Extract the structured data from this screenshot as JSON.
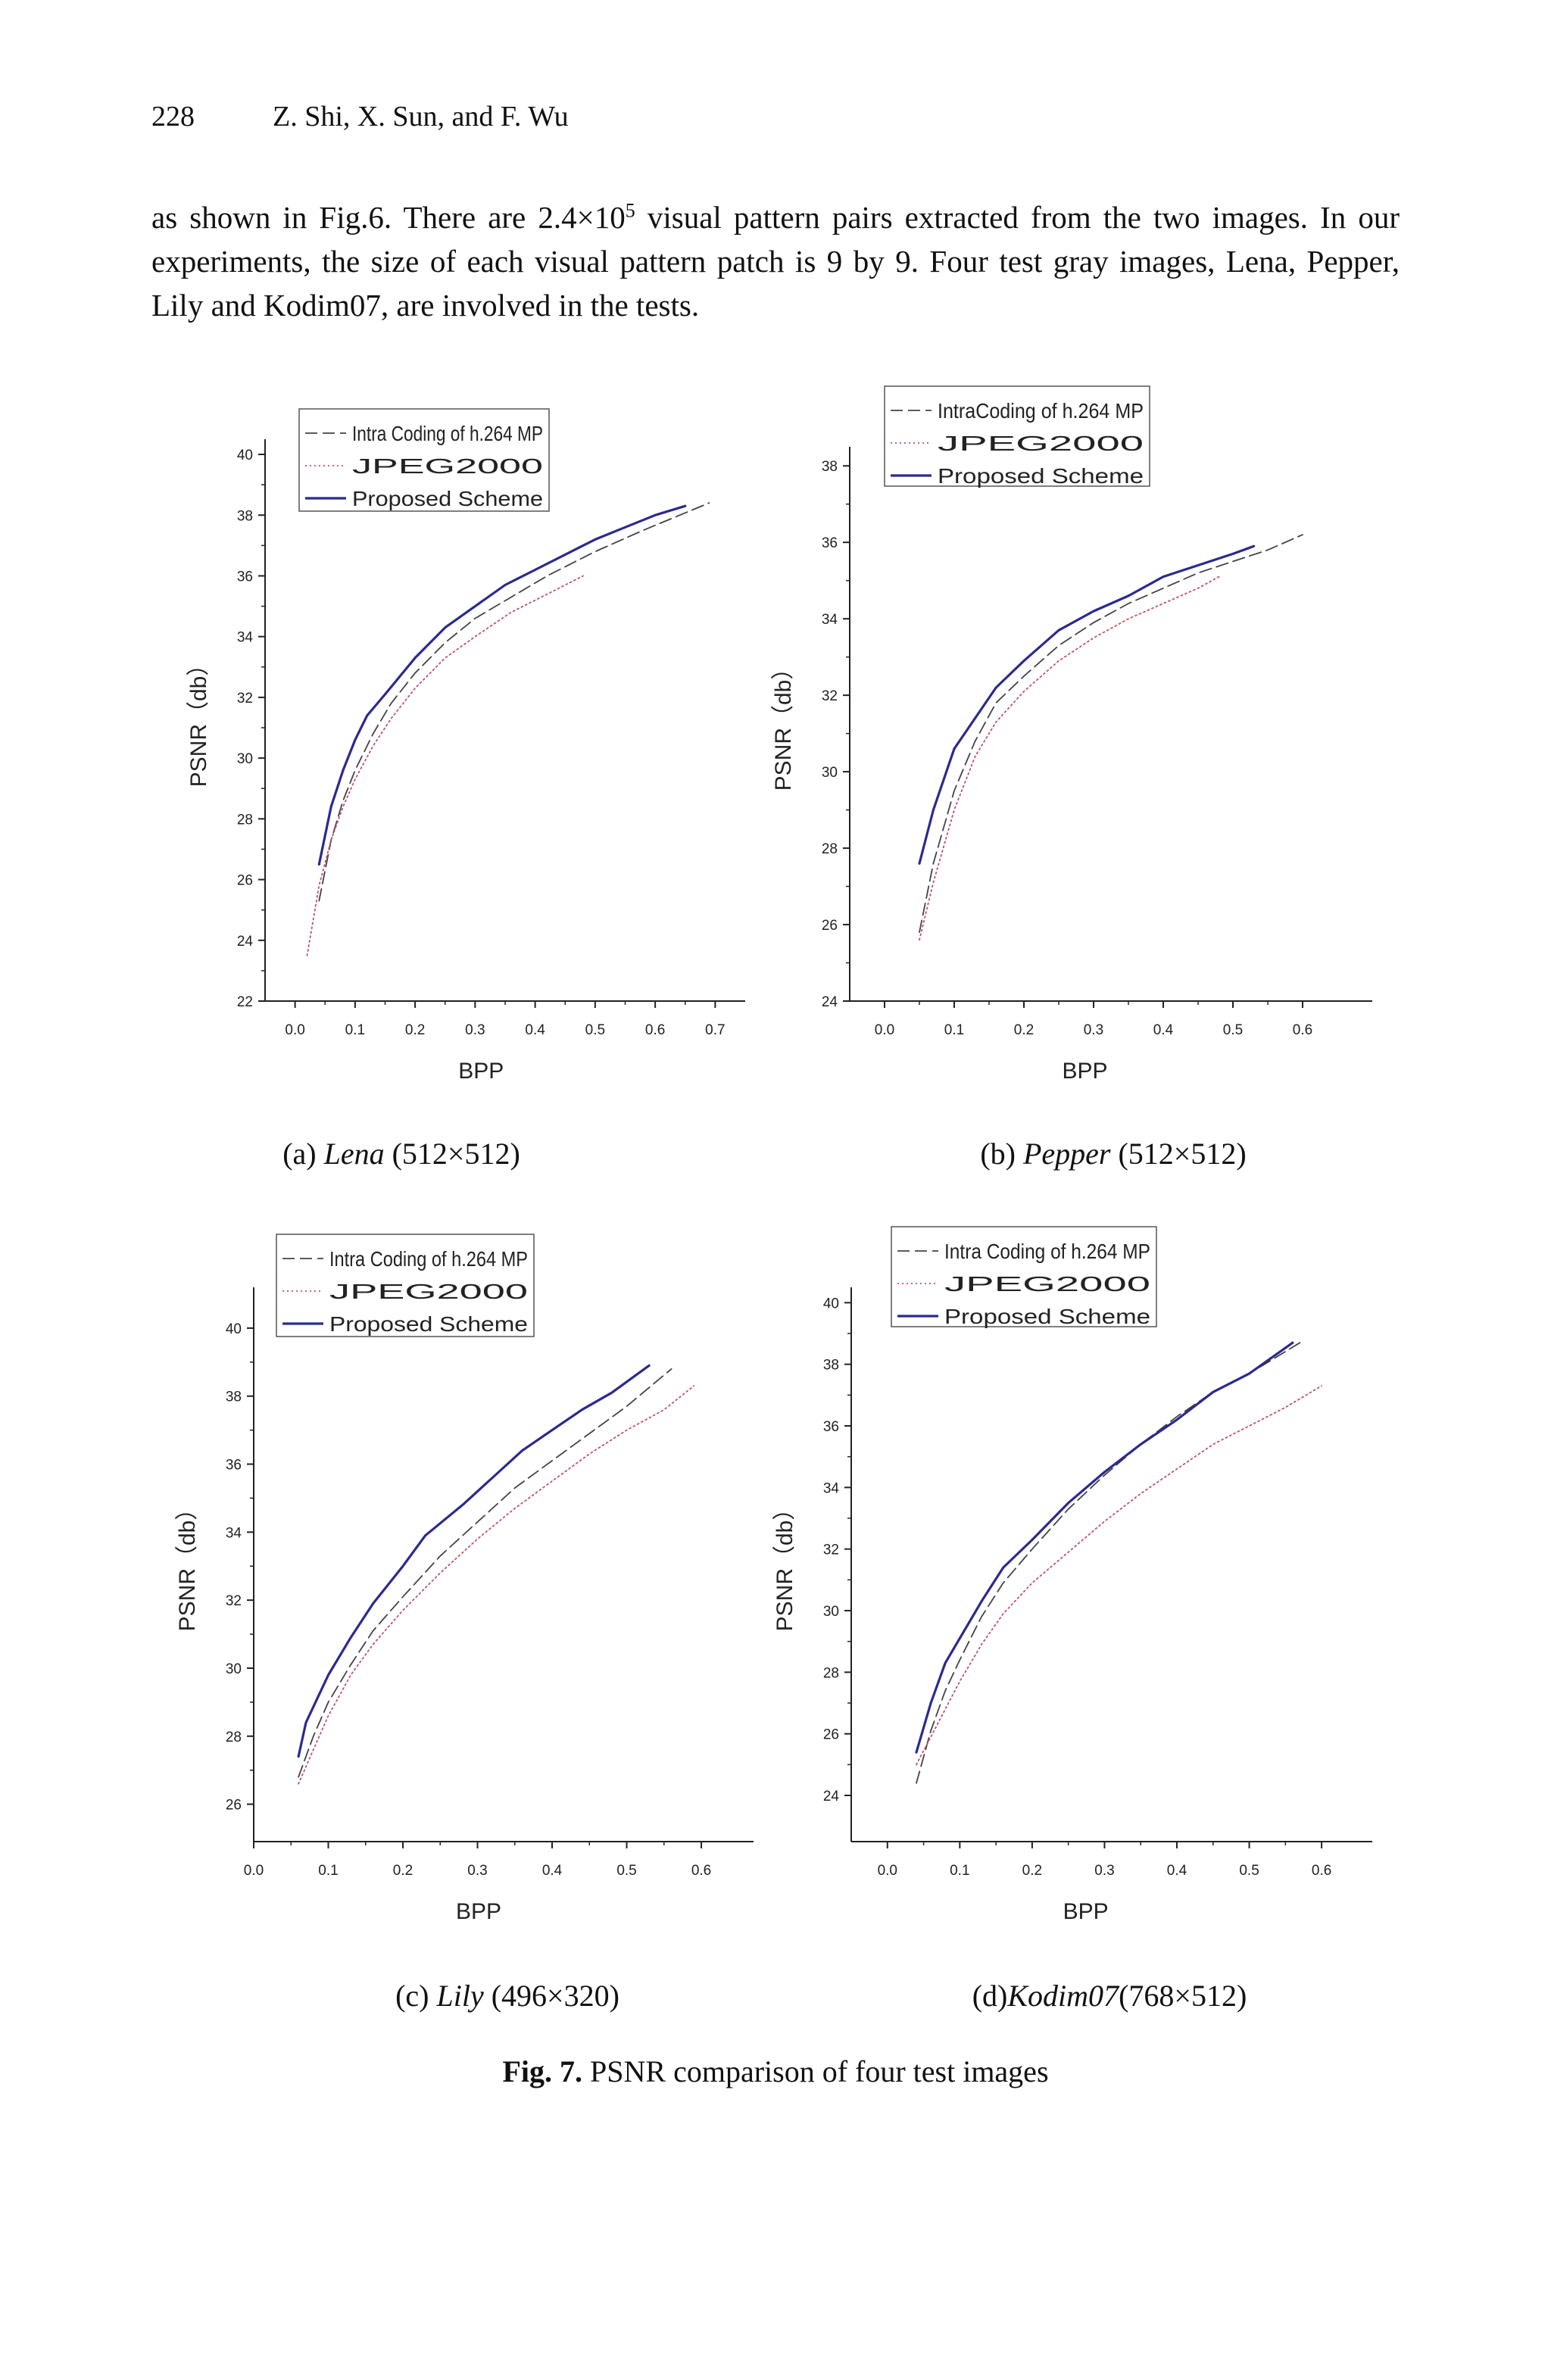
{
  "header": {
    "page_number": "228",
    "authors": "Z. Shi, X. Sun, and F. Wu"
  },
  "body": {
    "part1": "as shown in Fig.6. There are 2.4×10",
    "sup": "5",
    "part2": " visual pattern pairs extracted from the two images. In our experiments, the size of each visual pattern patch is 9 by 9. Four test gray images, Lena, Pepper, Lily and Kodim07, are involved in the tests."
  },
  "figure_caption": {
    "label": "Fig. 7.",
    "text": " PSNR comparison of four test images"
  },
  "series_colors": {
    "intra": "#444444",
    "jpeg": "#c0506a",
    "proposed": "#2b2a8f"
  },
  "chart_data": [
    {
      "type": "line",
      "caption": {
        "letter": "(a)",
        "name": "Lena",
        "size": "(512×512)"
      },
      "xlabel": "BPP",
      "ylabel": "PSNR（db）",
      "xlim": [
        -0.05,
        0.75
      ],
      "ylim": [
        22,
        40.5
      ],
      "xticks": [
        0.0,
        0.1,
        0.2,
        0.3,
        0.4,
        0.5,
        0.6,
        0.7
      ],
      "yticks": [
        22,
        24,
        26,
        28,
        30,
        32,
        34,
        36,
        38,
        40
      ],
      "legend_position": "top-left",
      "series": [
        {
          "name": "Intra Coding of h.264 MP",
          "style": "dashed",
          "x": [
            0.04,
            0.06,
            0.08,
            0.1,
            0.13,
            0.16,
            0.2,
            0.25,
            0.3,
            0.36,
            0.42,
            0.5,
            0.58,
            0.69
          ],
          "y": [
            25.3,
            27.3,
            28.6,
            29.6,
            30.8,
            31.8,
            32.8,
            33.8,
            34.6,
            35.3,
            36.0,
            36.8,
            37.5,
            38.4
          ]
        },
        {
          "name": "JPEG2000",
          "style": "dotted",
          "x": [
            0.02,
            0.04,
            0.06,
            0.08,
            0.1,
            0.13,
            0.16,
            0.2,
            0.25,
            0.3,
            0.36,
            0.42,
            0.48
          ],
          "y": [
            23.5,
            25.8,
            27.3,
            28.4,
            29.3,
            30.4,
            31.3,
            32.3,
            33.3,
            34.0,
            34.8,
            35.4,
            36.0
          ]
        },
        {
          "name": "Proposed Scheme",
          "style": "solid",
          "x": [
            0.04,
            0.06,
            0.08,
            0.1,
            0.12,
            0.15,
            0.2,
            0.25,
            0.3,
            0.35,
            0.4,
            0.45,
            0.5,
            0.55,
            0.6,
            0.65
          ],
          "y": [
            26.5,
            28.4,
            29.6,
            30.6,
            31.4,
            32.1,
            33.3,
            34.3,
            35.0,
            35.7,
            36.2,
            36.7,
            37.2,
            37.6,
            38.0,
            38.3
          ]
        }
      ]
    },
    {
      "type": "line",
      "caption": {
        "letter": "(b)",
        "name": "Pepper",
        "size": "(512×512)"
      },
      "xlabel": "BPP",
      "ylabel": "PSNR（db）",
      "xlim": [
        -0.05,
        0.7
      ],
      "ylim": [
        24,
        38.5
      ],
      "xticks": [
        0.0,
        0.1,
        0.2,
        0.3,
        0.4,
        0.5,
        0.6
      ],
      "yticks": [
        24,
        26,
        28,
        30,
        32,
        34,
        36,
        38
      ],
      "legend_position": "top-left",
      "series": [
        {
          "name": "IntraCoding of h.264 MP",
          "style": "dashed",
          "x": [
            0.05,
            0.07,
            0.1,
            0.13,
            0.16,
            0.2,
            0.25,
            0.3,
            0.35,
            0.4,
            0.45,
            0.5,
            0.55,
            0.6
          ],
          "y": [
            25.8,
            27.6,
            29.5,
            30.8,
            31.8,
            32.5,
            33.3,
            33.9,
            34.4,
            34.8,
            35.2,
            35.5,
            35.8,
            36.2
          ]
        },
        {
          "name": "JPEG2000",
          "style": "dotted",
          "x": [
            0.05,
            0.07,
            0.1,
            0.13,
            0.16,
            0.2,
            0.25,
            0.3,
            0.35,
            0.4,
            0.45,
            0.48
          ],
          "y": [
            25.6,
            27.1,
            29.0,
            30.4,
            31.3,
            32.1,
            32.9,
            33.5,
            34.0,
            34.4,
            34.8,
            35.1
          ]
        },
        {
          "name": "Proposed Scheme",
          "style": "solid",
          "x": [
            0.05,
            0.07,
            0.1,
            0.13,
            0.16,
            0.2,
            0.25,
            0.3,
            0.35,
            0.4,
            0.45,
            0.5,
            0.53
          ],
          "y": [
            27.6,
            29.0,
            30.6,
            31.4,
            32.2,
            32.9,
            33.7,
            34.2,
            34.6,
            35.1,
            35.4,
            35.7,
            35.9
          ]
        }
      ]
    },
    {
      "type": "line",
      "caption": {
        "letter": "(c)",
        "name": "Lily",
        "size": "(496×320)"
      },
      "xlabel": "BPP",
      "ylabel": "PSNR（db）",
      "xlim": [
        0.0,
        0.67
      ],
      "ylim": [
        24.9,
        41.2
      ],
      "xticks": [
        0.0,
        0.1,
        0.2,
        0.3,
        0.4,
        0.5,
        0.6
      ],
      "yticks": [
        26,
        28,
        30,
        32,
        34,
        36,
        38,
        40
      ],
      "legend_position": "top-left",
      "series": [
        {
          "name": "Intra Coding of h.264 MP",
          "style": "dashed",
          "x": [
            0.06,
            0.08,
            0.1,
            0.13,
            0.16,
            0.2,
            0.25,
            0.3,
            0.35,
            0.4,
            0.45,
            0.5,
            0.56
          ],
          "y": [
            26.8,
            28.0,
            29.0,
            30.1,
            31.1,
            32.1,
            33.3,
            34.3,
            35.3,
            36.1,
            36.9,
            37.7,
            38.8
          ]
        },
        {
          "name": "JPEG2000",
          "style": "dotted",
          "x": [
            0.06,
            0.08,
            0.1,
            0.13,
            0.16,
            0.2,
            0.25,
            0.3,
            0.35,
            0.4,
            0.45,
            0.5,
            0.55,
            0.59
          ],
          "y": [
            26.6,
            27.6,
            28.6,
            29.8,
            30.7,
            31.7,
            32.8,
            33.8,
            34.7,
            35.5,
            36.3,
            37.0,
            37.6,
            38.3
          ]
        },
        {
          "name": "Proposed Scheme",
          "style": "solid",
          "x": [
            0.06,
            0.07,
            0.1,
            0.13,
            0.16,
            0.2,
            0.23,
            0.28,
            0.32,
            0.36,
            0.4,
            0.44,
            0.48,
            0.53
          ],
          "y": [
            27.4,
            28.4,
            29.8,
            30.9,
            31.9,
            33.0,
            33.9,
            34.8,
            35.6,
            36.4,
            37.0,
            37.6,
            38.1,
            38.9
          ]
        }
      ]
    },
    {
      "type": "line",
      "caption": {
        "letter": "(d)",
        "name": "Kodim07",
        "size": "(768×512)"
      },
      "xlabel": "BPP",
      "ylabel": "PSNR（db）",
      "xlim": [
        -0.05,
        0.67
      ],
      "ylim": [
        22.5,
        40.5
      ],
      "xticks": [
        0.0,
        0.1,
        0.2,
        0.3,
        0.4,
        0.5,
        0.6
      ],
      "yticks": [
        24,
        26,
        28,
        30,
        32,
        34,
        36,
        38,
        40
      ],
      "legend_position": "top-left",
      "series": [
        {
          "name": "Intra Coding of h.264 MP",
          "style": "dashed",
          "x": [
            0.04,
            0.06,
            0.08,
            0.1,
            0.13,
            0.16,
            0.2,
            0.25,
            0.3,
            0.35,
            0.4,
            0.45,
            0.5,
            0.57
          ],
          "y": [
            24.4,
            26.1,
            27.4,
            28.4,
            29.8,
            30.9,
            32.0,
            33.3,
            34.4,
            35.4,
            36.3,
            37.1,
            37.7,
            38.7
          ]
        },
        {
          "name": "JPEG2000",
          "style": "dotted",
          "x": [
            0.04,
            0.06,
            0.08,
            0.1,
            0.13,
            0.16,
            0.2,
            0.25,
            0.3,
            0.35,
            0.4,
            0.45,
            0.5,
            0.55,
            0.6
          ],
          "y": [
            25.0,
            25.9,
            26.8,
            27.7,
            28.9,
            29.9,
            30.9,
            31.9,
            32.9,
            33.8,
            34.6,
            35.4,
            36.0,
            36.6,
            37.3
          ]
        },
        {
          "name": "Proposed Scheme",
          "style": "solid",
          "x": [
            0.04,
            0.06,
            0.08,
            0.1,
            0.13,
            0.16,
            0.2,
            0.25,
            0.3,
            0.35,
            0.4,
            0.45,
            0.5,
            0.56
          ],
          "y": [
            25.4,
            27.0,
            28.3,
            29.1,
            30.3,
            31.4,
            32.3,
            33.5,
            34.5,
            35.4,
            36.2,
            37.1,
            37.7,
            38.7
          ]
        }
      ]
    }
  ]
}
